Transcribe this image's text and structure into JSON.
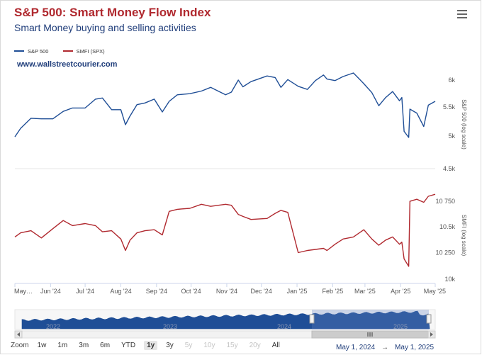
{
  "header": {
    "title": "S&P 500: Smart Money Flow Index",
    "subtitle": "Smart Money buying and selling activities",
    "watermark": "www.wallstreetcourier.com"
  },
  "legend": [
    {
      "label": "S&P 500",
      "color": "#1f4e96"
    },
    {
      "label": "SMFI (SPX)",
      "color": "#b0292f"
    }
  ],
  "chart_data": {
    "type": "line",
    "x_tick_labels": [
      "May…",
      "Jun '24",
      "Jul '24",
      "Aug '24",
      "Sep '24",
      "Oct '24",
      "Nov '24",
      "Dec '24",
      "Jan '25",
      "Feb '25",
      "Mar '25",
      "Apr '25",
      "May '25"
    ],
    "panes": [
      {
        "series": "S&P 500",
        "ylabel": "S&P 500 (log scale)",
        "scale": "log",
        "yticks": [
          "6k",
          "5.5k",
          "5k",
          "4.5k"
        ],
        "ytick_values": [
          6000,
          5500,
          5000,
          4500
        ],
        "ylim": [
          4500,
          6000
        ]
      },
      {
        "series": "SMFI (SPX)",
        "ylabel": "SMFI (log scale)",
        "scale": "log",
        "yticks": [
          "10 750",
          "10.5k",
          "10 250",
          "10k"
        ],
        "ytick_values": [
          10750,
          10500,
          10250,
          10000
        ],
        "ylim": [
          10000,
          10850
        ]
      }
    ],
    "series": [
      {
        "name": "S&P 500",
        "color": "#1f4e96",
        "x": [
          "2024-05-01",
          "2024-05-06",
          "2024-05-15",
          "2024-05-24",
          "2024-06-03",
          "2024-06-12",
          "2024-06-20",
          "2024-07-01",
          "2024-07-10",
          "2024-07-16",
          "2024-07-24",
          "2024-08-01",
          "2024-08-05",
          "2024-08-09",
          "2024-08-15",
          "2024-08-22",
          "2024-08-30",
          "2024-09-06",
          "2024-09-12",
          "2024-09-19",
          "2024-09-30",
          "2024-10-10",
          "2024-10-18",
          "2024-10-31",
          "2024-11-05",
          "2024-11-11",
          "2024-11-15",
          "2024-11-22",
          "2024-12-06",
          "2024-12-13",
          "2024-12-18",
          "2024-12-24",
          "2025-01-02",
          "2025-01-10",
          "2025-01-17",
          "2025-01-24",
          "2025-01-27",
          "2025-02-03",
          "2025-02-10",
          "2025-02-19",
          "2025-02-28",
          "2025-03-07",
          "2025-03-13",
          "2025-03-19",
          "2025-03-25",
          "2025-03-31",
          "2025-04-02",
          "2025-04-04",
          "2025-04-08",
          "2025-04-09",
          "2025-04-15",
          "2025-04-21",
          "2025-04-25",
          "2025-05-01"
        ],
        "values": [
          4990,
          5130,
          5300,
          5290,
          5290,
          5420,
          5480,
          5480,
          5640,
          5660,
          5450,
          5450,
          5190,
          5340,
          5540,
          5570,
          5640,
          5410,
          5600,
          5720,
          5740,
          5790,
          5860,
          5720,
          5770,
          6000,
          5870,
          5970,
          6080,
          6050,
          5860,
          6010,
          5880,
          5820,
          5990,
          6100,
          6020,
          5990,
          6070,
          6140,
          5930,
          5760,
          5520,
          5670,
          5780,
          5610,
          5670,
          5080,
          4980,
          5460,
          5390,
          5160,
          5530,
          5600
        ]
      },
      {
        "name": "SMFI (SPX)",
        "color": "#b0292f",
        "x": [
          "2024-05-01",
          "2024-05-06",
          "2024-05-15",
          "2024-05-24",
          "2024-06-03",
          "2024-06-12",
          "2024-06-20",
          "2024-07-01",
          "2024-07-10",
          "2024-07-16",
          "2024-07-24",
          "2024-08-01",
          "2024-08-05",
          "2024-08-09",
          "2024-08-15",
          "2024-08-22",
          "2024-08-30",
          "2024-09-06",
          "2024-09-12",
          "2024-09-19",
          "2024-09-30",
          "2024-10-10",
          "2024-10-18",
          "2024-10-31",
          "2024-11-05",
          "2024-11-11",
          "2024-11-15",
          "2024-11-22",
          "2024-12-06",
          "2024-12-13",
          "2024-12-18",
          "2024-12-24",
          "2025-01-02",
          "2025-01-10",
          "2025-01-17",
          "2025-01-24",
          "2025-01-27",
          "2025-02-03",
          "2025-02-10",
          "2025-02-19",
          "2025-02-28",
          "2025-03-07",
          "2025-03-13",
          "2025-03-19",
          "2025-03-25",
          "2025-03-31",
          "2025-04-02",
          "2025-04-04",
          "2025-04-08",
          "2025-04-09",
          "2025-04-15",
          "2025-04-21",
          "2025-04-25",
          "2025-05-01"
        ],
        "values": [
          10400,
          10440,
          10460,
          10390,
          10480,
          10560,
          10510,
          10530,
          10510,
          10450,
          10460,
          10380,
          10270,
          10370,
          10440,
          10460,
          10470,
          10420,
          10650,
          10670,
          10680,
          10720,
          10700,
          10720,
          10710,
          10620,
          10600,
          10570,
          10580,
          10630,
          10660,
          10640,
          10250,
          10270,
          10280,
          10290,
          10270,
          10330,
          10380,
          10400,
          10470,
          10380,
          10320,
          10370,
          10400,
          10330,
          10350,
          10190,
          10120,
          10750,
          10770,
          10740,
          10800,
          10820
        ]
      }
    ],
    "navigator": {
      "year_labels": [
        "2022",
        "2023",
        "2024",
        "2025"
      ]
    },
    "grid": false
  },
  "range_selector": {
    "zoom_label": "Zoom",
    "buttons": [
      {
        "label": "1w",
        "state": "normal"
      },
      {
        "label": "1m",
        "state": "normal"
      },
      {
        "label": "3m",
        "state": "normal"
      },
      {
        "label": "6m",
        "state": "normal"
      },
      {
        "label": "YTD",
        "state": "normal"
      },
      {
        "label": "1y",
        "state": "active"
      },
      {
        "label": "3y",
        "state": "normal"
      },
      {
        "label": "5y",
        "state": "disabled"
      },
      {
        "label": "10y",
        "state": "disabled"
      },
      {
        "label": "15y",
        "state": "disabled"
      },
      {
        "label": "20y",
        "state": "disabled"
      },
      {
        "label": "All",
        "state": "normal"
      }
    ],
    "from_date": "May 1, 2024",
    "arrow": "→",
    "to_date": "May 1, 2025"
  }
}
